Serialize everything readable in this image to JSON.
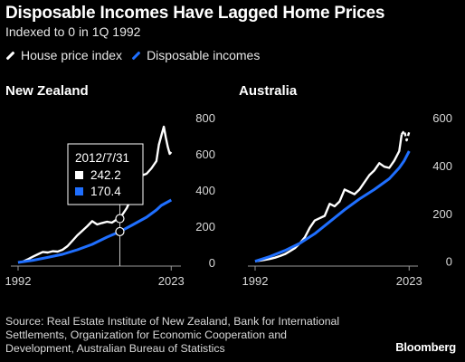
{
  "title": "Disposable Incomes Have Lagged Home Prices",
  "subtitle": "Indexed to 0 in 1Q 1992",
  "legend": [
    {
      "label": "House price index",
      "color": "#ffffff",
      "style": "solid"
    },
    {
      "label": "Disposable incomes",
      "color": "#1f6fff",
      "style": "solid"
    }
  ],
  "source": "Source: Real Estate Institute of New Zealand, Bank for International Settlements, Organization for Economic Cooperation and Development, Australian Bureau of Statistics",
  "brand": "Bloomberg",
  "colors": {
    "house": "#ffffff",
    "income": "#1f6fff",
    "axis": "#999999",
    "crosshair": "#cccccc"
  },
  "chart_data": [
    {
      "type": "line",
      "title": "New Zealand",
      "xlim": [
        1992,
        2023.5
      ],
      "ylim": [
        -20,
        800
      ],
      "yticks": [
        0,
        200,
        400,
        600,
        800
      ],
      "xticks": [
        "1992",
        "2023"
      ],
      "series": [
        {
          "name": "House price index",
          "x": [
            1992,
            1993,
            1994,
            1995,
            1996,
            1997,
            1998,
            1999,
            2000,
            2001,
            2002,
            2003,
            2004,
            2005,
            2006,
            2007,
            2008,
            2009,
            2010,
            2011,
            2012,
            2012.6,
            2013,
            2014,
            2015,
            2016,
            2017,
            2018,
            2019,
            2020,
            2020.5,
            2021,
            2021.5,
            2021.9,
            2022.3,
            2022.7,
            2023
          ],
          "values": [
            0,
            5,
            18,
            32,
            45,
            58,
            55,
            62,
            60,
            70,
            90,
            120,
            150,
            175,
            200,
            228,
            210,
            218,
            225,
            220,
            238,
            242.2,
            260,
            300,
            360,
            450,
            480,
            490,
            520,
            560,
            650,
            700,
            750,
            690,
            640,
            600,
            610
          ]
        },
        {
          "name": "Disposable incomes",
          "x": [
            1992,
            1995,
            1998,
            2001,
            2004,
            2007,
            2010,
            2012.6,
            2015,
            2018,
            2020,
            2021,
            2022,
            2023
          ],
          "values": [
            0,
            12,
            28,
            45,
            70,
            100,
            140,
            170.4,
            205,
            250,
            290,
            315,
            330,
            345
          ]
        }
      ],
      "tooltip": {
        "date": "2012/7/31",
        "x": 2012.6,
        "house": "242.2",
        "income": "170.4"
      }
    },
    {
      "type": "line",
      "title": "Australia",
      "xlim": [
        1992,
        2023.5
      ],
      "ylim": [
        -20,
        600
      ],
      "yticks": [
        0,
        200,
        400,
        600
      ],
      "xticks": [
        "1992",
        "2023"
      ],
      "series": [
        {
          "name": "House price index",
          "x": [
            1992,
            1993,
            1994,
            1995,
            1996,
            1997,
            1998,
            1999,
            2000,
            2001,
            2002,
            2003,
            2004,
            2005,
            2006,
            2007,
            2008,
            2009,
            2010,
            2011,
            2012,
            2013,
            2014,
            2015,
            2016,
            2017,
            2018,
            2019,
            2020,
            2021,
            2021.5,
            2022,
            2022.5,
            2023
          ],
          "values": [
            0,
            3,
            6,
            10,
            15,
            22,
            30,
            42,
            55,
            75,
            100,
            140,
            170,
            180,
            190,
            240,
            230,
            250,
            300,
            290,
            280,
            300,
            330,
            360,
            380,
            410,
            395,
            390,
            420,
            460,
            530,
            545,
            505,
            540
          ],
          "dashed_from": 2021.5
        },
        {
          "name": "Disposable incomes",
          "x": [
            1992,
            1995,
            1998,
            2001,
            2004,
            2007,
            2010,
            2013,
            2016,
            2019,
            2021,
            2022,
            2023
          ],
          "values": [
            0,
            20,
            45,
            75,
            115,
            165,
            215,
            260,
            300,
            345,
            390,
            420,
            460
          ]
        }
      ]
    }
  ]
}
